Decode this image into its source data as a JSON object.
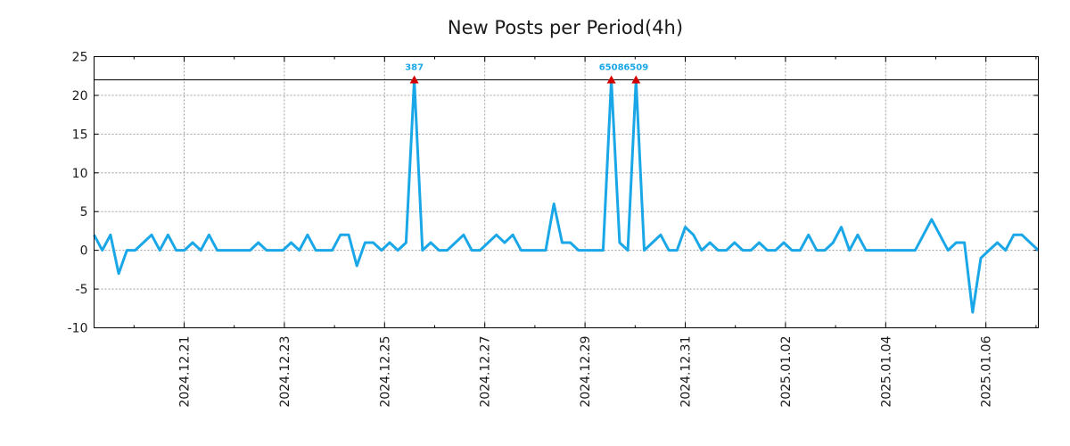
{
  "chart_data": {
    "type": "line",
    "title": "New Posts per Period(4h)",
    "xlabel": "",
    "ylabel": "",
    "ylim": [
      -10,
      25
    ],
    "yticks": [
      -10,
      -5,
      0,
      5,
      10,
      15,
      20,
      25
    ],
    "x_tick_labels": [
      "2024.12.21",
      "2024.12.23",
      "2024.12.25",
      "2024.12.27",
      "2024.12.29",
      "2024.12.31",
      "2025.01.02",
      "2025.01.04",
      "2025.01.06"
    ],
    "grid": true,
    "threshold": 22,
    "series": [
      {
        "name": "New Posts",
        "color": "#1aa7e8",
        "values": [
          2,
          0,
          2,
          -3,
          0,
          0,
          1,
          2,
          0,
          2,
          0,
          0,
          1,
          0,
          2,
          0,
          0,
          0,
          0,
          0,
          1,
          0,
          0,
          0,
          1,
          0,
          2,
          0,
          0,
          0,
          2,
          2,
          -2,
          1,
          1,
          0,
          1,
          0,
          1,
          22,
          0,
          1,
          0,
          0,
          1,
          2,
          0,
          0,
          1,
          2,
          1,
          2,
          0,
          0,
          0,
          0,
          6,
          1,
          1,
          0,
          0,
          0,
          0,
          22,
          1,
          0,
          22,
          0,
          1,
          2,
          0,
          0,
          3,
          2,
          0,
          1,
          0,
          0,
          1,
          0,
          0,
          1,
          0,
          0,
          1,
          0,
          0,
          2,
          0,
          0,
          1,
          3,
          0,
          2,
          0,
          0,
          0,
          0,
          0,
          0,
          0,
          2,
          4,
          2,
          0,
          1,
          1,
          -8,
          -1,
          0,
          1,
          0,
          2,
          2,
          1,
          0
        ]
      }
    ],
    "annotations": [
      {
        "label": "387",
        "index": 39,
        "y": 22,
        "label_color": "#1aa7e8",
        "marker_color": "#d40000"
      },
      {
        "label": "6508",
        "index": 63,
        "y": 22,
        "label_color": "#1aa7e8",
        "marker_color": "#d40000"
      },
      {
        "label": "6509",
        "index": 66,
        "y": 22,
        "label_color": "#1aa7e8",
        "marker_color": "#d40000"
      }
    ]
  }
}
